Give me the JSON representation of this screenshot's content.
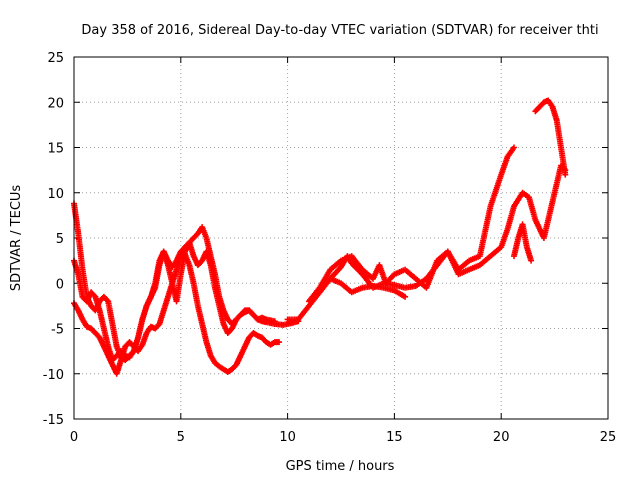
{
  "chart_data": {
    "type": "scatter",
    "title": "Day 358 of 2016, Sidereal Day-to-day VTEC variation (SDTVAR) for receiver thti",
    "xlabel": "GPS time / hours",
    "ylabel": "SDTVAR / TECUs",
    "xlim": [
      0,
      25
    ],
    "ylim": [
      -15,
      25
    ],
    "x_ticks": [
      "0",
      "5",
      "10",
      "15",
      "20",
      "25"
    ],
    "y_ticks": [
      "-15",
      "-10",
      "-5",
      "0",
      "5",
      "10",
      "15",
      "20",
      "25"
    ],
    "grid": true,
    "marker": "+",
    "color": "#ff0000",
    "series": [
      {
        "x": [
          0,
          0.2,
          0.4,
          0.6,
          0.8,
          1.0,
          1.2,
          1.4,
          1.6,
          1.8,
          2.0
        ],
        "y": [
          8.8,
          5.5,
          1.5,
          -1.5,
          -2.5,
          -3.0,
          -2.0,
          -1.5,
          -2.0,
          -4.5,
          -7.0
        ]
      },
      {
        "x": [
          2.0,
          2.2,
          2.4,
          2.6,
          2.8,
          3.0,
          3.2,
          3.4,
          3.6,
          3.8,
          4.0,
          4.2,
          4.4,
          4.6,
          4.8,
          5.0,
          5.2,
          5.4,
          5.6,
          5.8,
          6.0,
          6.2,
          6.4,
          6.6,
          6.8,
          7.0,
          7.2,
          7.4,
          7.6,
          7.8,
          8.0,
          8.2,
          8.4,
          8.6,
          8.8,
          9.0,
          9.4,
          9.8,
          10.2,
          10.5
        ],
        "y": [
          -7.0,
          -8.2,
          -8.5,
          -8.0,
          -7.5,
          -6.0,
          -4.0,
          -2.5,
          -1.5,
          -0.5,
          2.0,
          3.5,
          2.5,
          1.8,
          2.5,
          3.5,
          4.0,
          4.5,
          5.0,
          5.5,
          6.2,
          5.0,
          3.0,
          1.0,
          -1.5,
          -3.0,
          -4.0,
          -4.5,
          -4.0,
          -3.5,
          -3.2,
          -3.0,
          -3.5,
          -4.0,
          -4.2,
          -4.3,
          -4.5,
          -4.6,
          -4.4,
          -4.2
        ]
      },
      {
        "x": [
          0,
          0.2,
          0.4,
          0.6,
          0.8,
          1.0,
          1.2,
          1.4,
          1.6,
          1.8,
          2.0,
          2.2,
          2.4,
          2.6,
          2.8,
          3.0,
          3.2,
          3.4,
          3.6,
          3.8,
          4.0,
          4.2,
          4.4,
          4.6,
          4.8,
          5.0,
          5.2,
          5.4,
          5.6,
          5.8,
          6.0,
          6.2,
          6.4,
          6.6,
          6.8,
          7.0,
          7.2,
          7.4,
          7.6,
          7.8,
          8.0,
          8.2,
          8.4,
          8.6,
          8.8,
          9.0,
          9.4
        ],
        "y": [
          2.5,
          1.0,
          -1.5,
          -2.0,
          -1.0,
          -1.5,
          -3.0,
          -5.0,
          -7.0,
          -8.5,
          -8.0,
          -7.5,
          -8.0,
          -8.2,
          -7.5,
          -6.0,
          -4.0,
          -2.5,
          -1.5,
          0.0,
          2.5,
          3.5,
          2.0,
          0.0,
          -2.0,
          1.0,
          3.5,
          4.5,
          3.0,
          2.0,
          2.5,
          3.5,
          2.0,
          -0.5,
          -2.5,
          -4.5,
          -5.5,
          -5.0,
          -4.0,
          -3.5,
          -3.0,
          -3.0,
          -3.5,
          -4.0,
          -3.8,
          -4.0,
          -4.2
        ]
      },
      {
        "x": [
          0,
          0.2,
          0.4,
          0.6,
          0.8,
          1.0,
          1.2,
          1.4,
          1.6,
          1.8,
          2.0,
          2.2,
          2.4,
          2.6,
          2.8,
          3.0,
          3.2,
          3.4,
          3.6,
          3.8,
          4.0,
          4.2,
          4.4,
          4.6,
          4.8,
          5.0,
          5.2,
          5.4,
          5.6,
          5.8,
          6.0,
          6.2,
          6.4,
          6.6,
          6.8,
          7.0,
          7.2,
          7.4,
          7.6,
          7.8,
          8.0,
          8.2,
          8.4,
          8.6,
          8.8,
          9.0,
          9.2,
          9.4,
          9.6
        ],
        "y": [
          -2.2,
          -3.0,
          -4.0,
          -4.8,
          -5.0,
          -5.5,
          -6.0,
          -7.0,
          -8.0,
          -9.0,
          -10.0,
          -8.5,
          -7.0,
          -6.5,
          -7.0,
          -7.5,
          -6.8,
          -5.5,
          -4.8,
          -5.0,
          -4.5,
          -3.0,
          -1.5,
          0.0,
          1.5,
          3.0,
          3.2,
          2.0,
          0.0,
          -2.5,
          -4.5,
          -6.5,
          -8.0,
          -8.8,
          -9.2,
          -9.5,
          -9.8,
          -9.5,
          -9.0,
          -8.0,
          -7.0,
          -6.0,
          -5.5,
          -5.8,
          -6.0,
          -6.5,
          -6.8,
          -6.5,
          -6.5
        ]
      },
      {
        "x": [
          10.0,
          10.5,
          11.0,
          11.5,
          12.0,
          12.5,
          12.8,
          13.0,
          13.5,
          14.0,
          14.5,
          15.0,
          15.5,
          16.0,
          16.5,
          17.0,
          17.5,
          18.0,
          18.5,
          19.0,
          19.5,
          20.0,
          20.3,
          20.6,
          21.0,
          21.3,
          21.6,
          22.0,
          22.4,
          22.8,
          23.0
        ],
        "y": [
          -4.0,
          -4.0,
          -2.5,
          -1.0,
          0.5,
          1.8,
          3.0,
          2.2,
          1.0,
          -0.5,
          0.0,
          -0.2,
          -0.5,
          -0.3,
          0.5,
          2.0,
          3.5,
          1.0,
          1.5,
          2.0,
          3.0,
          4.0,
          6.0,
          8.5,
          10.0,
          9.5,
          7.0,
          5.0,
          9.0,
          13.0,
          12.5
        ]
      },
      {
        "x": [
          11.0,
          11.5,
          12.0,
          12.5,
          13.0,
          13.5,
          14.0,
          14.3,
          14.6,
          15.0,
          15.5,
          16.0,
          16.5,
          17.0,
          17.5,
          18.0,
          18.5,
          19.0,
          19.5,
          20.0,
          20.3,
          20.6
        ],
        "y": [
          -2.0,
          -0.5,
          1.5,
          2.5,
          3.0,
          1.5,
          0.5,
          2.0,
          0.0,
          1.0,
          1.5,
          0.5,
          -0.5,
          2.5,
          3.5,
          1.5,
          2.5,
          3.0,
          8.5,
          12.0,
          14.0,
          15.0
        ]
      },
      {
        "x": [
          12.0,
          12.5,
          13.0,
          13.5,
          14.0,
          14.5,
          15.0,
          15.5
        ],
        "y": [
          0.5,
          0.0,
          -1.0,
          -0.5,
          -0.3,
          -0.5,
          -0.8,
          -1.5
        ]
      },
      {
        "x": [
          21.6,
          21.8,
          22.0,
          22.2,
          22.4,
          22.6,
          22.8,
          23.0
        ],
        "y": [
          19.0,
          19.5,
          20.0,
          20.2,
          19.5,
          18.0,
          15.0,
          12.0
        ]
      },
      {
        "x": [
          20.6,
          20.8,
          21.0,
          21.2,
          21.4
        ],
        "y": [
          3.0,
          5.0,
          6.5,
          4.0,
          2.5
        ]
      }
    ]
  }
}
